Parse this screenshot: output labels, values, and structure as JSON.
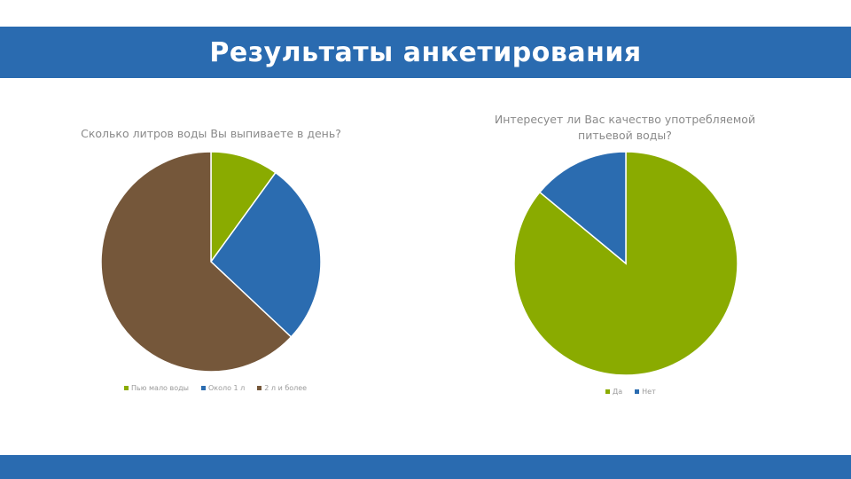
{
  "header": {
    "title": "Результаты анкетирования"
  },
  "colors": {
    "banner": "#2a6bb0",
    "green": "#8aab00",
    "blue": "#2b6cb0",
    "brown": "#75573a"
  },
  "chart_data": [
    {
      "type": "pie",
      "title": "Сколько литров воды Вы выпиваете в день?",
      "categories": [
        "Пью мало воды",
        "Около 1 л",
        "2 л и более"
      ],
      "values": [
        10,
        27,
        63
      ],
      "colors": [
        "#8aab00",
        "#2b6cb0",
        "#75573a"
      ],
      "legend": "bottom"
    },
    {
      "type": "pie",
      "title": "Интересует ли Вас качество употребляемой питьевой воды?",
      "categories": [
        "Да",
        "Нет"
      ],
      "values": [
        86,
        14
      ],
      "colors": [
        "#8aab00",
        "#2b6cb0"
      ],
      "legend": "bottom"
    }
  ]
}
